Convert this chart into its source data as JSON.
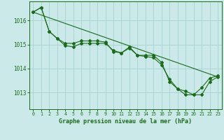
{
  "title": "Graphe pression niveau de la mer (hPa)",
  "bg_color": "#cce9e9",
  "grid_color": "#aad4d4",
  "line_color": "#1a6b1a",
  "marker_color": "#1a6b1a",
  "xlim": [
    -0.5,
    23.5
  ],
  "ylim": [
    1012.3,
    1016.8
  ],
  "yticks": [
    1013,
    1014,
    1015,
    1016
  ],
  "xticks": [
    0,
    1,
    2,
    3,
    4,
    5,
    6,
    7,
    8,
    9,
    10,
    11,
    12,
    13,
    14,
    15,
    16,
    17,
    18,
    19,
    20,
    21,
    22,
    23
  ],
  "series1": [
    1016.35,
    1016.55,
    1015.55,
    1015.25,
    1014.95,
    1014.9,
    1015.05,
    1015.05,
    1015.05,
    1015.05,
    1014.75,
    1014.65,
    1014.85,
    1014.55,
    1014.5,
    1014.45,
    1014.15,
    1013.55,
    1013.15,
    1013.05,
    1012.9,
    1012.9,
    1013.45,
    1013.65
  ],
  "series2": [
    1016.35,
    1016.55,
    1015.55,
    1015.25,
    1015.05,
    1015.05,
    1015.15,
    1015.15,
    1015.15,
    1015.1,
    1014.7,
    1014.65,
    1014.9,
    1014.55,
    1014.55,
    1014.55,
    1014.25,
    1013.45,
    1013.15,
    1012.9,
    1012.9,
    1013.2,
    1013.6,
    1013.7
  ],
  "series_straight": [
    [
      0,
      1016.35
    ],
    [
      23,
      1013.65
    ]
  ]
}
